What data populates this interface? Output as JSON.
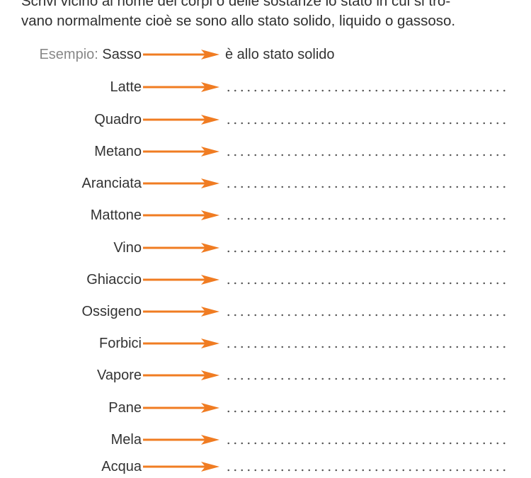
{
  "instructions": {
    "line1": "Scrivi vicino al nome dei corpi o delle sostanze lo stato in cui si tro-",
    "line2": "vano normalmente cioè se sono allo stato solido, liquido o gassoso."
  },
  "example": {
    "prefix": "Esempio:",
    "item": "Sasso",
    "answer": "è allo stato solido"
  },
  "items": [
    "Latte",
    "Quadro",
    "Metano",
    "Aranciata",
    "Mattone",
    "Vino",
    "Ghiaccio",
    "Ossigeno",
    "Forbici",
    "Vapore",
    "Pane",
    "Mela",
    "Acqua"
  ],
  "colors": {
    "arrow": "#f07c22",
    "text": "#333333",
    "muted": "#888888"
  }
}
